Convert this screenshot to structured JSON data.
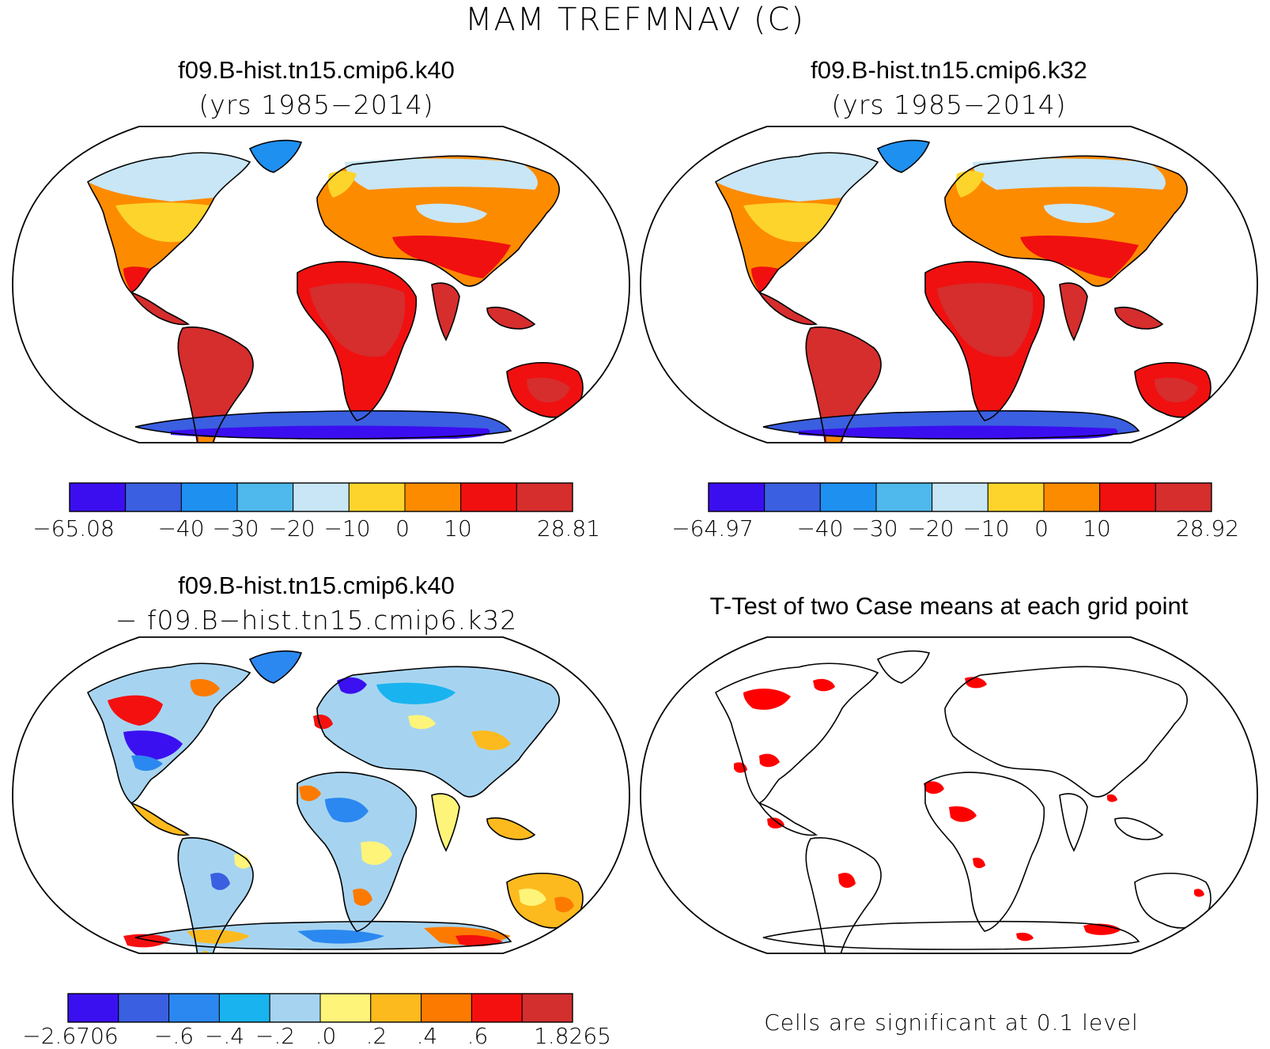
{
  "main_title": "MAM TREFMNAV (C)",
  "colors": {
    "temp": [
      "#3b0ef0",
      "#3a5fe0",
      "#1e90f0",
      "#4fb8ec",
      "#c8e6f5",
      "#fdd42b",
      "#fd8b00",
      "#f01010",
      "#d62d2d"
    ],
    "diff": [
      "#3b10f0",
      "#3a5fe0",
      "#2b88f0",
      "#19b4f0",
      "#a6d4f0",
      "#fef47a",
      "#fdba1e",
      "#fd7a00",
      "#f51010",
      "#d32f2f"
    ],
    "sig": "#ff0000"
  },
  "panels": {
    "top_left": {
      "title": "f09.B-hist.tn15.cmip6.k40",
      "subtitle": "(yrs 1985−2014)",
      "colorbar": {
        "min_label": "−65.08",
        "max_label": "28.81",
        "levels": [
          "−40",
          "−30",
          "−20",
          "−10",
          "0",
          "10"
        ]
      }
    },
    "top_right": {
      "title": "f09.B-hist.tn15.cmip6.k32",
      "subtitle": "(yrs 1985−2014)",
      "colorbar": {
        "min_label": "−64.97",
        "max_label": "28.92",
        "levels": [
          "−40",
          "−30",
          "−20",
          "−10",
          "0",
          "10"
        ]
      }
    },
    "bottom_left": {
      "title": "f09.B-hist.tn15.cmip6.k40",
      "subtitle": "− f09.B−hist.tn15.cmip6.k32",
      "colorbar": {
        "min_label": "−2.6706",
        "max_label": "1.8265",
        "levels": [
          "−.6",
          "−.4",
          "−.2",
          ".0",
          ".2",
          ".4",
          ".6"
        ]
      }
    },
    "bottom_right": {
      "title": "T-Test of two Case means at each grid point",
      "note": "Cells are significant at 0.1 level"
    }
  }
}
